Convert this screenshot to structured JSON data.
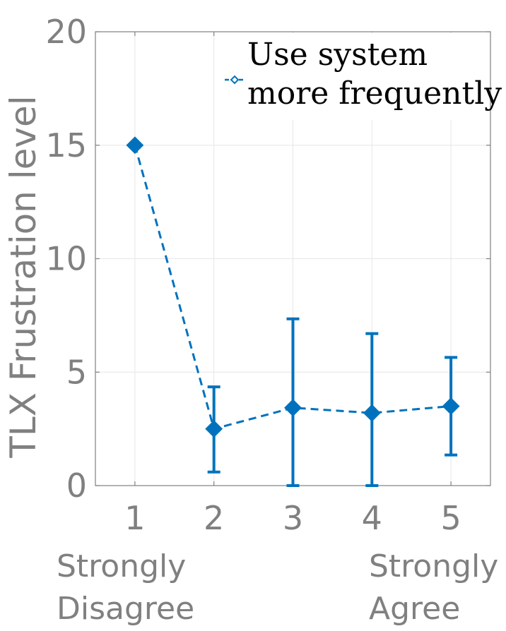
{
  "chart_data": {
    "type": "line",
    "ylabel": "TLX Frustration level",
    "xlabel": "",
    "x": [
      1,
      2,
      3,
      4,
      5
    ],
    "xlim": [
      0.5,
      5.5
    ],
    "ylim": [
      0,
      20
    ],
    "yticks": [
      0,
      5,
      10,
      15,
      20
    ],
    "grid": true,
    "legend_position": "top-right",
    "scale_anchors": {
      "left": [
        "Strongly",
        "Disagree"
      ],
      "right": [
        "Strongly",
        "Agree"
      ]
    },
    "series": [
      {
        "name": [
          "Use system",
          "more frequently"
        ],
        "values": [
          15.0,
          2.5,
          3.43,
          3.2,
          3.5
        ],
        "error_low": [
          15.0,
          0.6,
          0.0,
          0.0,
          1.35
        ],
        "error_high": [
          15.0,
          4.35,
          7.35,
          6.7,
          5.65
        ],
        "color": "#0072BD",
        "line_style": "dashed",
        "marker": "diamond"
      }
    ]
  },
  "colors": {
    "axis": "#808080",
    "grid": "#e6e6e6",
    "series": "#0072BD"
  }
}
